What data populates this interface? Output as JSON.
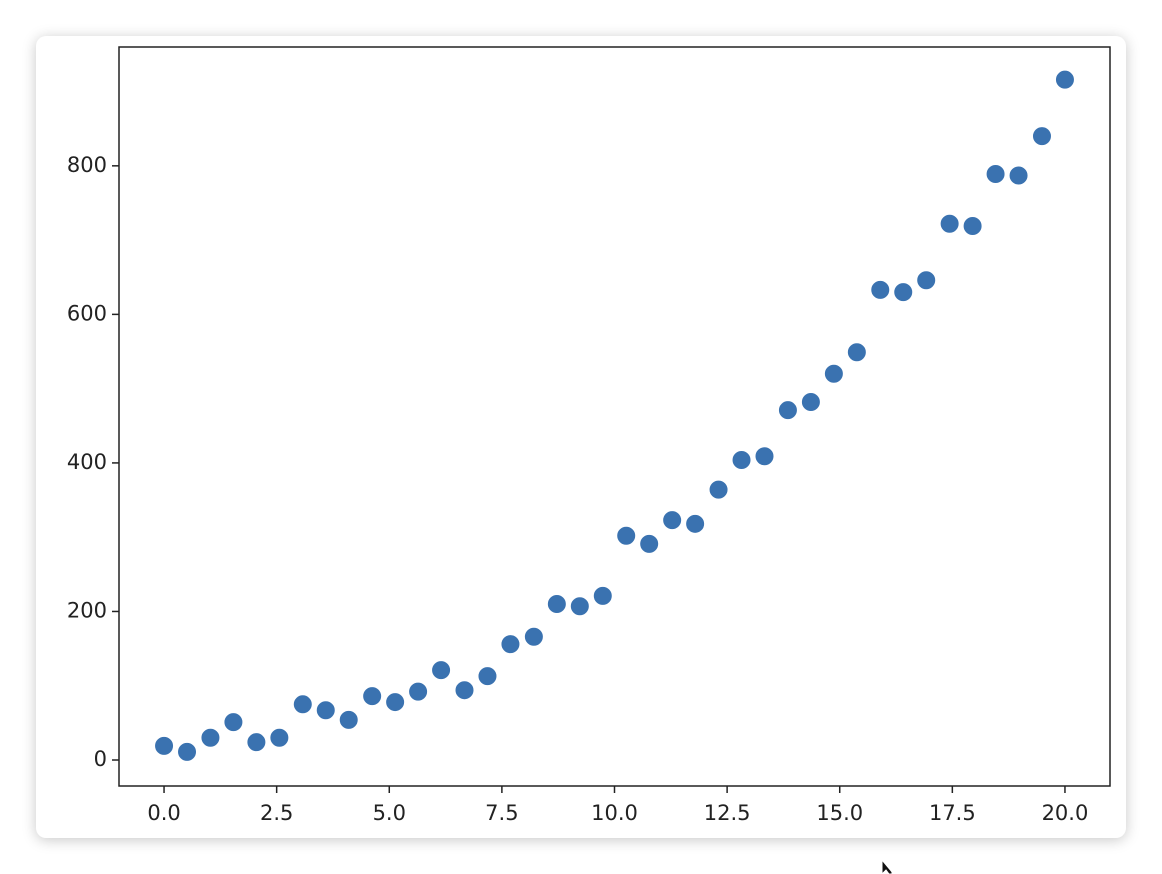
{
  "chart_data": {
    "type": "scatter",
    "color": "#3a72b0",
    "x": [
      0,
      0.51,
      1.03,
      1.54,
      2.05,
      2.56,
      3.08,
      3.59,
      4.1,
      4.62,
      5.13,
      5.64,
      6.15,
      6.67,
      7.18,
      7.69,
      8.21,
      8.72,
      9.23,
      9.74,
      10.26,
      10.77,
      11.28,
      11.79,
      12.31,
      12.82,
      13.33,
      13.85,
      14.36,
      14.87,
      15.38,
      15.9,
      16.41,
      16.92,
      17.44,
      17.95,
      18.46,
      18.97,
      19.49,
      20
    ],
    "values": [
      19,
      11,
      30,
      51,
      24,
      30,
      75,
      67,
      54,
      86,
      78,
      92,
      121,
      94,
      113,
      156,
      166,
      210,
      207,
      221,
      302,
      291,
      323,
      318,
      364,
      404,
      409,
      471,
      482,
      520,
      549,
      633,
      630,
      646,
      722,
      719,
      789,
      787,
      840,
      916
    ],
    "xlim": [
      -1,
      21
    ],
    "xticks": [
      {
        "value": 0,
        "label": "0.0"
      },
      {
        "value": 2.5,
        "label": "2.5"
      },
      {
        "value": 5,
        "label": "5.0"
      },
      {
        "value": 7.5,
        "label": "7.5"
      },
      {
        "value": 10,
        "label": "10.0"
      },
      {
        "value": 12.5,
        "label": "12.5"
      },
      {
        "value": 15,
        "label": "15.0"
      },
      {
        "value": 17.5,
        "label": "17.5"
      },
      {
        "value": 20,
        "label": "20.0"
      }
    ],
    "ylim": [
      -35,
      960
    ],
    "yticks": [
      0,
      200,
      400,
      600,
      800
    ]
  }
}
